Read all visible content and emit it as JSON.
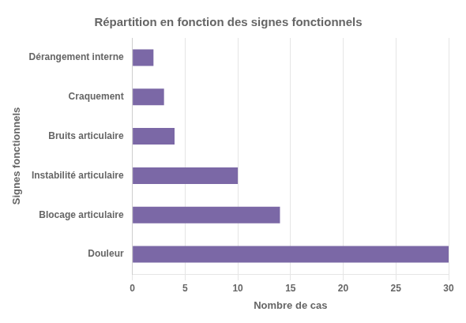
{
  "chart_data": {
    "type": "bar",
    "orientation": "horizontal",
    "title": "Répartition en fonction des signes fonctionnels",
    "xlabel": "Nombre de cas",
    "ylabel": "Signes fonctionnels",
    "categories": [
      "Douleur",
      "Blocage articulaire",
      "Instabilité articulaire",
      "Bruits articulaire",
      "Craquement",
      "Dérangement interne"
    ],
    "values": [
      30,
      14,
      10,
      4,
      3,
      2
    ],
    "color": "#7B68A6",
    "xlim": [
      0,
      30
    ],
    "xticks": [
      0,
      5,
      10,
      15,
      20,
      25,
      30
    ],
    "grid": true
  }
}
